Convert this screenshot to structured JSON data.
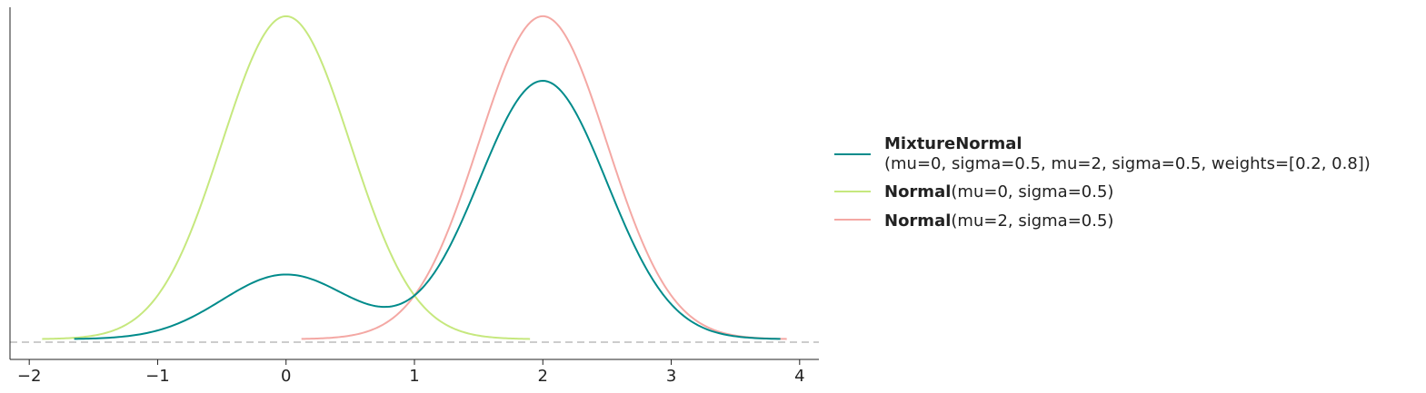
{
  "chart_data": {
    "type": "line",
    "title": "",
    "xlabel": "",
    "ylabel": "",
    "xlim": [
      -2.15,
      4.15
    ],
    "ylim": [
      -0.05,
      0.82
    ],
    "x_ticks": [
      -2,
      -1,
      0,
      1,
      2,
      3,
      4
    ],
    "x_tick_labels": [
      "−2",
      "−1",
      "0",
      "1",
      "2",
      "3",
      "4"
    ],
    "y_ticks_visible": false,
    "baseline": {
      "y": 0,
      "style": "dashed",
      "color": "#cccccc"
    },
    "legend_position": "right",
    "series": [
      {
        "name": "MixtureNormal",
        "params": "(mu=0, sigma=0.5, mu=2, sigma=0.5, weights=[0.2, 0.8])",
        "color": "#008b8b",
        "components": [
          {
            "mu": 0,
            "sigma": 0.5,
            "weight": 0.2
          },
          {
            "mu": 2,
            "sigma": 0.5,
            "weight": 0.8
          }
        ],
        "x_range": [
          -1.65,
          3.85
        ]
      },
      {
        "name": "Normal",
        "params": "(mu=0, sigma=0.5)",
        "color": "#c6e87e",
        "components": [
          {
            "mu": 0,
            "sigma": 0.5,
            "weight": 1
          }
        ],
        "x_range": [
          -1.9,
          1.9
        ]
      },
      {
        "name": "Normal",
        "params": "(mu=2, sigma=0.5)",
        "color": "#f4a8a4",
        "components": [
          {
            "mu": 2,
            "sigma": 0.5,
            "weight": 1
          }
        ],
        "x_range": [
          0.12,
          3.9
        ]
      }
    ]
  }
}
